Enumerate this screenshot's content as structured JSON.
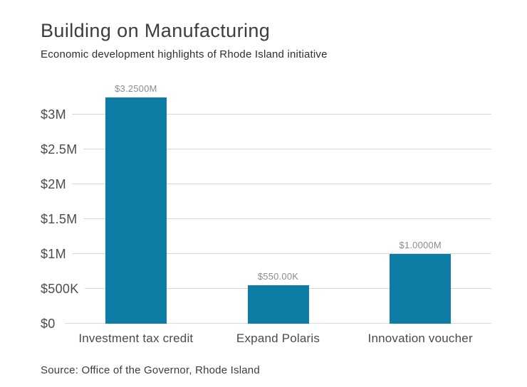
{
  "chart_data": {
    "type": "bar",
    "title": "Building on Manufacturing",
    "subtitle": "Economic development highlights of Rhode Island initiative",
    "categories": [
      "Investment tax credit",
      "Expand Polaris",
      "Innovation voucher"
    ],
    "values": [
      3250000,
      550000,
      1000000
    ],
    "value_labels": [
      "$3.2500M",
      "$550.00K",
      "$1.0000M"
    ],
    "yticks": [
      {
        "value": 3000000,
        "label": "$3M"
      },
      {
        "value": 2500000,
        "label": "$2.5M"
      },
      {
        "value": 2000000,
        "label": "$2M"
      },
      {
        "value": 1500000,
        "label": "$1.5M"
      },
      {
        "value": 1000000,
        "label": "$1M"
      },
      {
        "value": 500000,
        "label": "$500K"
      },
      {
        "value": 0,
        "label": "$0"
      }
    ],
    "ylim": [
      0,
      3250000
    ],
    "grid": true,
    "legend": "none",
    "bar_color": "#0e7da5",
    "source": "Source: Office of the Governor, Rhode Island"
  }
}
